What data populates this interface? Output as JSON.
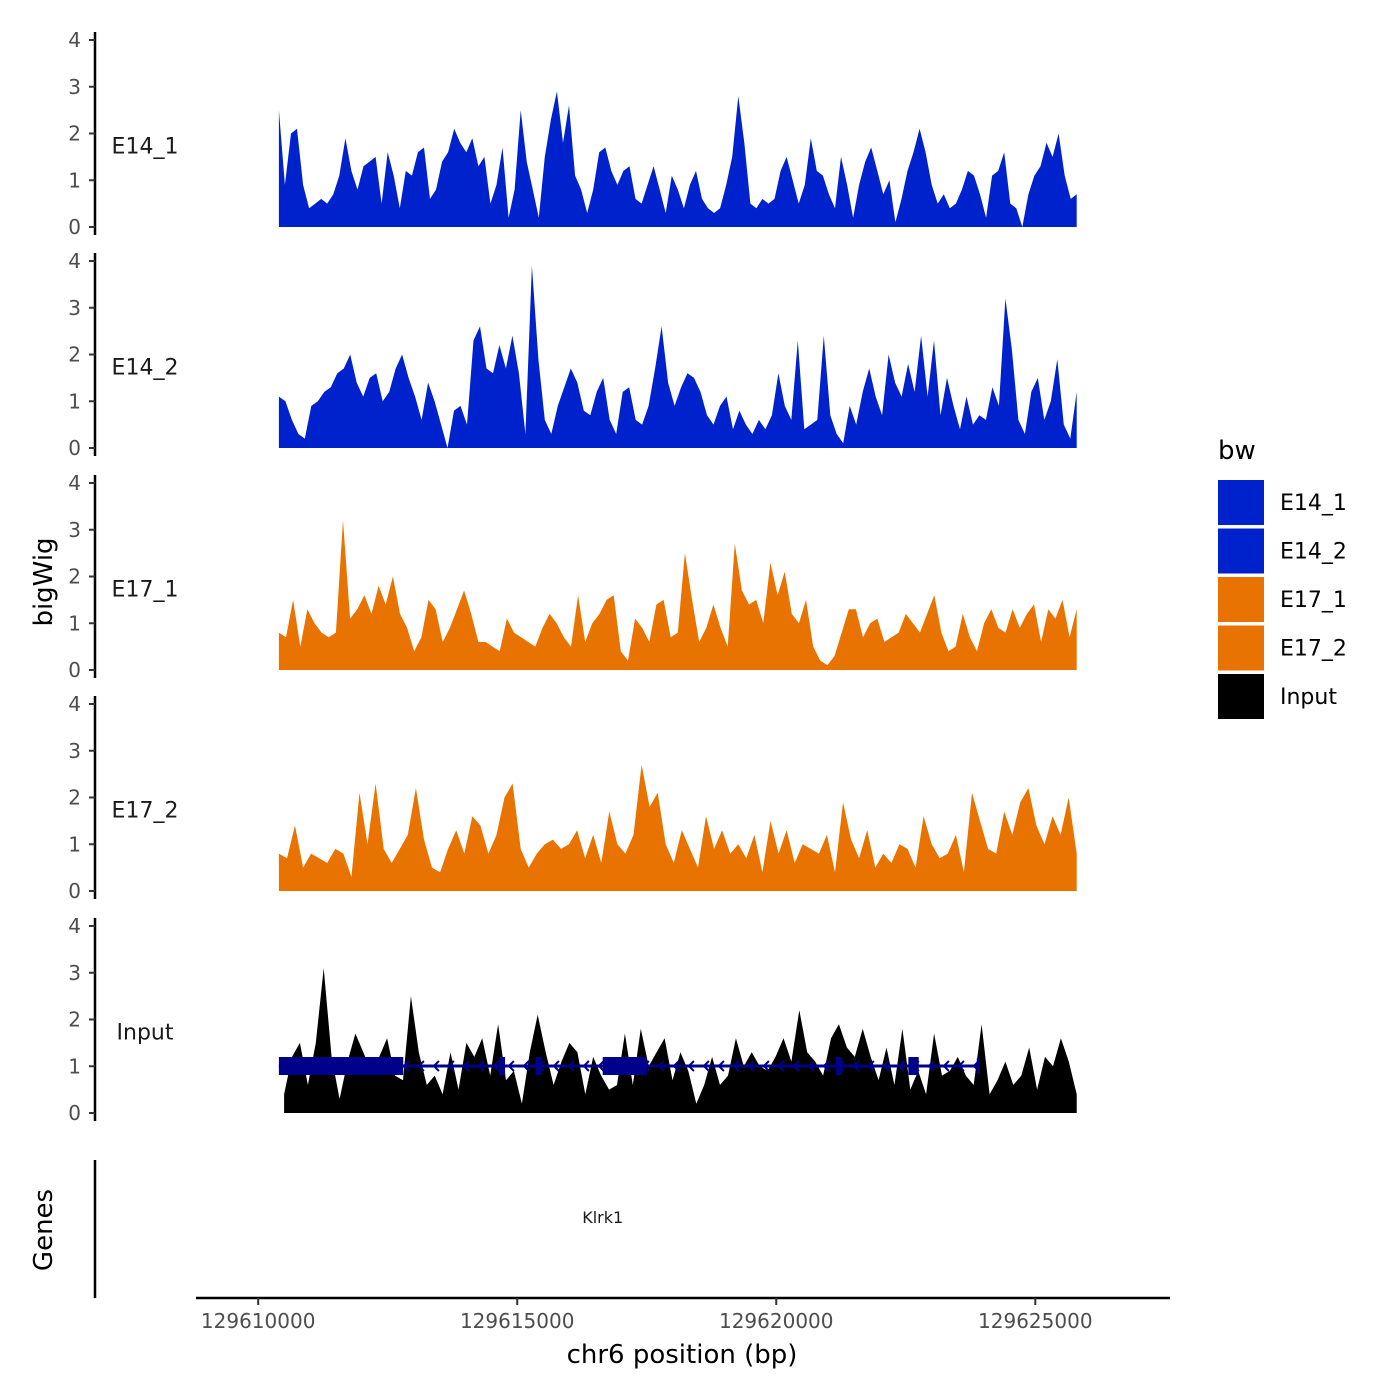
{
  "chart_data": {
    "type": "area",
    "ylabel": "bigWig",
    "xlabel": "chr6 position (bp)",
    "genes_label": "Genes",
    "x_range": [
      129610000,
      129625800
    ],
    "xlim": [
      129608800,
      129627600
    ],
    "x_ticks": [
      {
        "value": 129610000,
        "label": "129610000"
      },
      {
        "value": 129615000,
        "label": "129615000"
      },
      {
        "value": 129620000,
        "label": "129620000"
      },
      {
        "value": 129625000,
        "label": "129625000"
      }
    ],
    "ylim": [
      0,
      4
    ],
    "y_ticks": [
      {
        "value": 0,
        "label": "0"
      },
      {
        "value": 1,
        "label": "1"
      },
      {
        "value": 2,
        "label": "2"
      },
      {
        "value": 3,
        "label": "3"
      },
      {
        "value": 4,
        "label": "4"
      }
    ],
    "series": [
      {
        "name": "E14_1",
        "color": "#0022CC",
        "x_start": 129610400,
        "x_end": 129625800,
        "values": [
          2.5,
          0.9,
          2.0,
          2.1,
          0.9,
          0.4,
          0.5,
          0.6,
          0.5,
          0.7,
          1.1,
          1.9,
          1.2,
          0.8,
          1.3,
          1.4,
          1.5,
          0.5,
          1.6,
          1.1,
          0.4,
          1.2,
          1.1,
          1.6,
          1.7,
          0.6,
          0.8,
          1.4,
          1.6,
          2.1,
          1.8,
          1.6,
          1.9,
          1.3,
          1.5,
          0.5,
          0.9,
          1.7,
          0.2,
          0.8,
          2.5,
          1.4,
          0.8,
          0.2,
          1.5,
          2.3,
          2.9,
          1.8,
          2.6,
          1.1,
          0.8,
          0.3,
          0.8,
          1.6,
          1.7,
          1.2,
          0.9,
          1.2,
          1.3,
          0.6,
          0.5,
          0.9,
          1.3,
          0.8,
          0.3,
          1.1,
          0.8,
          0.4,
          0.9,
          1.2,
          0.6,
          0.4,
          0.3,
          0.4,
          0.9,
          1.5,
          2.8,
          1.8,
          0.5,
          0.4,
          0.6,
          0.5,
          0.6,
          1.2,
          1.5,
          1.0,
          0.5,
          0.9,
          1.9,
          1.2,
          1.1,
          0.7,
          0.4,
          1.5,
          0.9,
          0.2,
          0.9,
          1.4,
          1.7,
          1.2,
          0.7,
          1.0,
          0.1,
          0.6,
          1.2,
          1.6,
          2.1,
          1.6,
          0.9,
          0.5,
          0.7,
          0.4,
          0.5,
          0.8,
          1.2,
          1.1,
          0.7,
          0.2,
          1.1,
          1.2,
          1.6,
          0.5,
          0.4,
          0.0,
          0.7,
          1.1,
          1.3,
          1.8,
          1.5,
          2.0,
          1.1,
          0.6,
          0.7
        ]
      },
      {
        "name": "E14_2",
        "color": "#0022CC",
        "x_start": 129610400,
        "x_end": 129625800,
        "values": [
          1.1,
          1.0,
          0.6,
          0.3,
          0.2,
          0.9,
          1.0,
          1.2,
          1.3,
          1.6,
          1.7,
          2.0,
          1.4,
          1.1,
          1.5,
          1.6,
          1.0,
          1.2,
          1.7,
          2.0,
          1.5,
          1.1,
          0.6,
          1.4,
          1.0,
          0.5,
          0.0,
          0.8,
          0.9,
          0.5,
          2.3,
          2.6,
          1.7,
          1.6,
          2.2,
          1.7,
          2.4,
          1.6,
          0.3,
          3.9,
          1.9,
          0.6,
          0.3,
          0.9,
          1.3,
          1.7,
          1.4,
          0.8,
          0.7,
          1.2,
          1.5,
          0.6,
          0.3,
          1.2,
          1.3,
          0.6,
          0.5,
          0.9,
          1.7,
          2.6,
          1.4,
          0.9,
          1.3,
          1.6,
          1.5,
          1.2,
          0.7,
          0.5,
          0.9,
          1.1,
          0.4,
          0.8,
          0.5,
          0.3,
          0.6,
          0.4,
          0.7,
          1.6,
          0.9,
          0.6,
          2.3,
          0.4,
          0.5,
          0.6,
          2.4,
          0.7,
          0.3,
          0.1,
          0.9,
          0.5,
          1.2,
          1.7,
          1.1,
          0.7,
          2.0,
          1.4,
          1.1,
          1.8,
          1.2,
          2.4,
          1.1,
          2.3,
          0.7,
          1.5,
          0.9,
          0.4,
          1.1,
          0.5,
          0.7,
          0.6,
          1.3,
          0.9,
          3.2,
          2.1,
          0.6,
          0.3,
          1.2,
          1.5,
          0.6,
          1.0,
          1.9,
          0.5,
          0.2,
          1.2
        ]
      },
      {
        "name": "E17_1",
        "color": "#E87300",
        "x_start": 129610400,
        "x_end": 129625800,
        "values": [
          0.8,
          0.7,
          1.5,
          0.5,
          1.3,
          1.0,
          0.8,
          0.7,
          0.8,
          3.2,
          1.1,
          1.3,
          1.6,
          1.2,
          1.8,
          1.4,
          2.0,
          1.2,
          0.9,
          0.4,
          0.7,
          1.5,
          1.3,
          0.6,
          0.9,
          1.3,
          1.7,
          1.2,
          0.6,
          0.6,
          0.5,
          0.4,
          1.1,
          0.8,
          0.7,
          0.6,
          0.5,
          0.9,
          1.2,
          1.0,
          0.7,
          0.5,
          1.6,
          0.6,
          1.0,
          1.2,
          1.5,
          1.6,
          0.4,
          0.2,
          1.1,
          0.9,
          0.6,
          1.4,
          1.5,
          0.7,
          0.8,
          2.5,
          1.5,
          0.6,
          0.9,
          1.4,
          0.9,
          0.5,
          2.7,
          1.7,
          1.4,
          1.5,
          1.0,
          2.3,
          1.6,
          2.1,
          1.2,
          1.0,
          1.5,
          0.5,
          0.2,
          0.1,
          0.3,
          0.8,
          1.3,
          1.3,
          0.7,
          1.0,
          1.1,
          0.6,
          0.7,
          0.8,
          1.2,
          1.0,
          0.8,
          1.2,
          1.6,
          0.8,
          0.4,
          0.5,
          1.2,
          0.7,
          0.4,
          1.0,
          1.3,
          0.9,
          0.8,
          1.3,
          0.9,
          1.2,
          1.4,
          0.6,
          1.3,
          1.1,
          1.5,
          0.7,
          1.3
        ]
      },
      {
        "name": "E17_2",
        "color": "#E87300",
        "x_start": 129610400,
        "x_end": 129625800,
        "values": [
          0.8,
          0.7,
          1.4,
          0.5,
          0.8,
          0.7,
          0.6,
          0.9,
          0.8,
          0.3,
          2.1,
          1.0,
          2.3,
          0.9,
          0.6,
          0.9,
          1.2,
          2.2,
          1.1,
          0.5,
          0.4,
          0.9,
          1.3,
          0.8,
          1.6,
          1.4,
          0.8,
          1.2,
          2.0,
          2.3,
          0.9,
          0.5,
          0.8,
          1.0,
          1.1,
          0.9,
          1.0,
          1.3,
          0.7,
          1.2,
          0.6,
          1.7,
          1.0,
          0.8,
          1.2,
          2.7,
          1.8,
          2.1,
          1.0,
          0.6,
          1.3,
          0.9,
          0.5,
          1.6,
          0.9,
          1.3,
          0.8,
          1.0,
          0.7,
          1.2,
          0.4,
          1.5,
          0.8,
          1.3,
          0.6,
          1.0,
          0.9,
          0.8,
          1.2,
          0.4,
          1.9,
          1.1,
          0.7,
          1.3,
          0.5,
          0.8,
          0.6,
          1.0,
          0.9,
          0.5,
          1.6,
          1.0,
          0.7,
          0.8,
          1.2,
          0.4,
          2.1,
          1.5,
          0.9,
          0.8,
          1.7,
          1.2,
          1.9,
          2.2,
          1.4,
          1.0,
          1.6,
          1.2,
          2.0,
          0.8
        ]
      },
      {
        "name": "Input",
        "color": "#000000",
        "x_start": 129610500,
        "x_end": 129625800,
        "values": [
          0.4,
          1.2,
          1.5,
          0.6,
          1.5,
          3.1,
          1.2,
          0.3,
          1.1,
          1.7,
          1.3,
          0.9,
          1.2,
          1.6,
          0.8,
          0.7,
          2.5,
          1.3,
          0.6,
          0.8,
          0.4,
          1.3,
          0.5,
          1.5,
          1.2,
          1.6,
          0.8,
          1.9,
          0.7,
          0.9,
          0.2,
          1.3,
          2.1,
          1.3,
          0.6,
          1.1,
          1.5,
          1.3,
          0.4,
          1.2,
          0.8,
          0.5,
          0.6,
          1.7,
          0.6,
          1.8,
          1.0,
          1.3,
          1.6,
          0.7,
          1.3,
          0.9,
          0.2,
          0.6,
          1.2,
          0.6,
          0.8,
          1.6,
          1.0,
          1.3,
          1.0,
          0.9,
          1.2,
          1.6,
          1.1,
          2.2,
          1.3,
          1.1,
          0.8,
          1.6,
          1.9,
          1.4,
          1.2,
          1.8,
          1.2,
          0.7,
          1.4,
          0.6,
          1.8,
          0.5,
          0.9,
          0.4,
          1.7,
          0.8,
          0.9,
          1.2,
          0.8,
          0.6,
          1.9,
          0.4,
          0.7,
          1.1,
          0.6,
          0.8,
          1.4,
          0.5,
          1.2,
          1.0,
          1.6,
          1.1,
          0.4
        ]
      }
    ],
    "legend": {
      "title": "bw",
      "position": "right",
      "entries": [
        {
          "label": "E14_1",
          "color": "#0022CC"
        },
        {
          "label": "E14_2",
          "color": "#0022CC"
        },
        {
          "label": "E17_1",
          "color": "#E87300"
        },
        {
          "label": "E17_2",
          "color": "#E87300"
        },
        {
          "label": "Input",
          "color": "#000000"
        }
      ]
    },
    "gene": {
      "name": "Klrk1",
      "color": "#00008B",
      "strand": "-",
      "start": 129610400,
      "end": 129623900,
      "exons": [
        [
          129610400,
          129612800
        ],
        [
          129614650,
          129614750
        ],
        [
          129615350,
          129615450
        ],
        [
          129616650,
          129617500
        ],
        [
          129621150,
          129621250
        ],
        [
          129622550,
          129622750
        ]
      ]
    }
  }
}
